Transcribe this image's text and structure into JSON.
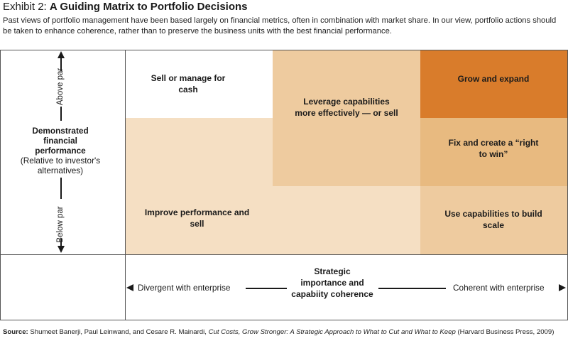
{
  "header": {
    "title_lead": "Exhibit 2: ",
    "title_bold": "A Guiding Matrix to Portfolio Decisions",
    "intro": "Past views of portfolio management have been based largely on financial metrics, often in combination with market share. In our view, portfolio actions should be taken to enhance coherence, rather than to preserve the business units with the best financial performance."
  },
  "y_axis": {
    "top_label": "Above par",
    "bottom_label": "Below par",
    "title_bold": "Demonstrated financial performance",
    "title_sub": "(Relative to investor's alternatives)"
  },
  "x_axis": {
    "left_label": "Divergent with enterprise",
    "right_label": "Coherent with enterprise",
    "title": "Strategic importance and capabiity coherence"
  },
  "cells": {
    "sell_manage": "Sell or manage for cash",
    "leverage": "Leverage capabilities more effectively — or sell",
    "grow": "Grow and expand",
    "fix": "Fix and create a “right to win”",
    "improve": "Improve performance and sell",
    "use_capabilities": "Use capabilities to build scale"
  },
  "colors": {
    "light": "#F5DFC3",
    "mid_light": "#EECB9F",
    "mid": "#E8BA80",
    "dark": "#E0A257",
    "darkest": "#D97C2B"
  },
  "source": {
    "label": "Source:",
    "authors": " Shumeet Banerji, Paul Leinwand, and Cesare R. Mainardi, ",
    "book": "Cut Costs, Grow Stronger: A Strategic Approach to What to Cut and What to Keep",
    "publisher": " (Harvard Business Press, 2009)"
  }
}
